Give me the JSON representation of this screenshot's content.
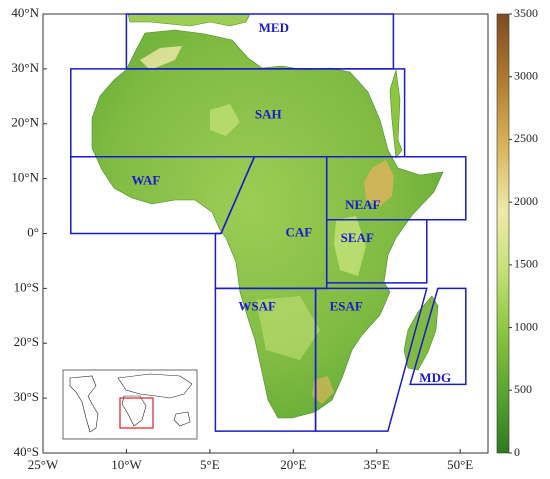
{
  "map": {
    "lon_range": [
      -25,
      55
    ],
    "lat_range": [
      -40,
      40
    ],
    "x_ticks": [
      {
        "lon": -25,
        "label": "25°W"
      },
      {
        "lon": -10,
        "label": "10°W"
      },
      {
        "lon": 5,
        "label": "5°E"
      },
      {
        "lon": 20,
        "label": "20°E"
      },
      {
        "lon": 35,
        "label": "35°E"
      },
      {
        "lon": 50,
        "label": "50°E"
      }
    ],
    "y_ticks": [
      {
        "lat": 40,
        "label": "40°N"
      },
      {
        "lat": 30,
        "label": "30°N"
      },
      {
        "lat": 20,
        "label": "20°N"
      },
      {
        "lat": 10,
        "label": "10°N"
      },
      {
        "lat": 0,
        "label": "0°"
      },
      {
        "lat": -10,
        "label": "10°S"
      },
      {
        "lat": -20,
        "label": "20°S"
      },
      {
        "lat": -30,
        "label": "30°S"
      },
      {
        "lat": -40,
        "label": "40°S"
      }
    ],
    "box_color": "#1a1acc"
  },
  "regions": [
    {
      "label": "MED",
      "label_lon": 16.5,
      "label_lat": 37.3,
      "polygon": [
        [
          -10,
          40
        ],
        [
          38,
          40
        ],
        [
          38,
          30
        ],
        [
          -10,
          30
        ]
      ]
    },
    {
      "label": "SAH",
      "label_lon": 15.5,
      "label_lat": 21.5,
      "polygon": [
        [
          -20,
          30
        ],
        [
          40,
          30
        ],
        [
          40,
          14
        ],
        [
          -20,
          14
        ]
      ]
    },
    {
      "label": "WAF",
      "label_lon": -6.5,
      "label_lat": 9.5,
      "polygon": [
        [
          -20,
          14
        ],
        [
          13,
          14
        ],
        [
          7,
          0
        ],
        [
          -20,
          0
        ]
      ]
    },
    {
      "label": "CAF",
      "label_lon": 21.0,
      "label_lat": 0.0,
      "polygon": [
        [
          13,
          14
        ],
        [
          26,
          14
        ],
        [
          26,
          -10
        ],
        [
          6,
          -10
        ],
        [
          6,
          0
        ],
        [
          7,
          0
        ]
      ]
    },
    {
      "label": "NEAF",
      "label_lon": 32.5,
      "label_lat": 5.0,
      "polygon": [
        [
          26,
          14
        ],
        [
          51,
          14
        ],
        [
          51,
          2.5
        ],
        [
          26,
          2.5
        ]
      ]
    },
    {
      "label": "SEAF",
      "label_lon": 31.5,
      "label_lat": -1.0,
      "polygon": [
        [
          26,
          2.5
        ],
        [
          44,
          2.5
        ],
        [
          44,
          -9
        ],
        [
          26,
          -9
        ]
      ]
    },
    {
      "label": "WSAF",
      "label_lon": 13.5,
      "label_lat": -13.5,
      "polygon": [
        [
          6,
          -10
        ],
        [
          24,
          -10
        ],
        [
          24,
          -36
        ],
        [
          6,
          -36
        ]
      ]
    },
    {
      "label": "ESAF",
      "label_lon": 29.5,
      "label_lat": -13.5,
      "polygon": [
        [
          24,
          -10
        ],
        [
          44,
          -10
        ],
        [
          37,
          -36
        ],
        [
          24,
          -36
        ]
      ]
    },
    {
      "label": "MDG",
      "label_lon": 45.5,
      "label_lat": -26.5,
      "polygon": [
        [
          46,
          -10
        ],
        [
          51,
          -10
        ],
        [
          51,
          -27.5
        ],
        [
          41,
          -27.5
        ]
      ]
    }
  ],
  "colorbar": {
    "min": 0,
    "max": 3500,
    "ticks": [
      {
        "value": 0,
        "label": "0"
      },
      {
        "value": 500,
        "label": "500"
      },
      {
        "value": 1000,
        "label": "1000"
      },
      {
        "value": 1500,
        "label": "1500"
      },
      {
        "value": 2000,
        "label": "2000"
      },
      {
        "value": 2500,
        "label": "2500"
      },
      {
        "value": 3000,
        "label": "3000"
      },
      {
        "value": 3500,
        "label": "3500"
      }
    ],
    "colors": [
      "#2d7a1f",
      "#5aa532",
      "#8cc63f",
      "#c6e27a",
      "#efeaa8",
      "#d9b45c",
      "#b07a30",
      "#7f4a1f"
    ]
  },
  "inset": {
    "highlight_color": "#e02020"
  }
}
